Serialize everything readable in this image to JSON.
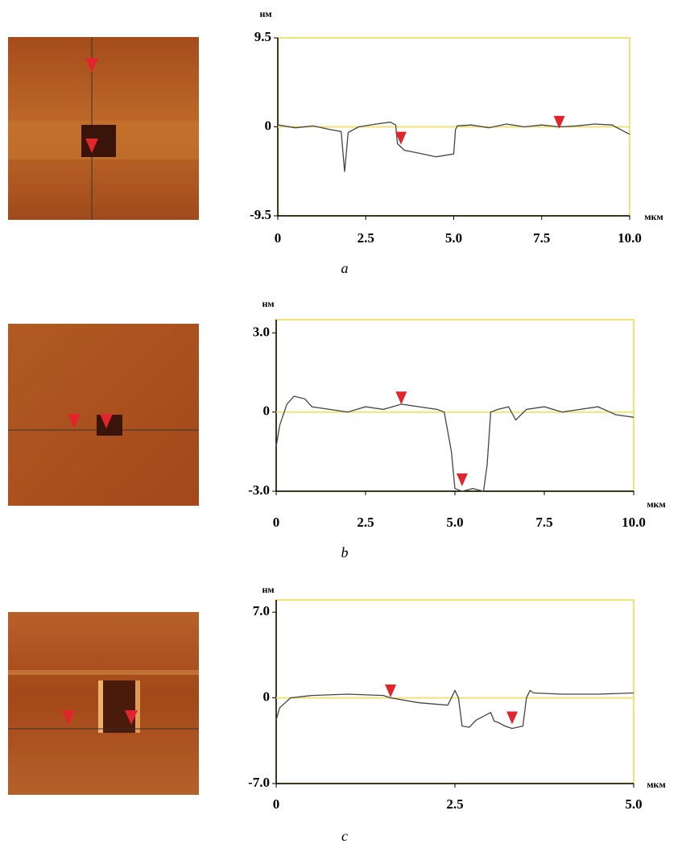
{
  "chart_data": [
    {
      "type": "line",
      "ylabel": "нм",
      "xlabel": "мкм",
      "caption": "a",
      "x": [
        0,
        0.5,
        1,
        1.5,
        1.8,
        1.9,
        2.0,
        2.3,
        2.8,
        3.2,
        3.35,
        3.4,
        3.6,
        4.0,
        4.5,
        5.0,
        5.05,
        5.1,
        5.5,
        6,
        6.5,
        7,
        7.5,
        8,
        8.5,
        9,
        9.5,
        10
      ],
      "values": [
        0.2,
        -0.1,
        0.1,
        -0.3,
        -0.5,
        -4.8,
        -0.6,
        0,
        0.3,
        0.5,
        0.2,
        -1.8,
        -2.5,
        -2.8,
        -3.2,
        -2.9,
        -0.3,
        0.1,
        0.2,
        -0.1,
        0.3,
        0,
        0.2,
        0,
        0.1,
        0.3,
        0.2,
        -0.8
      ],
      "color": "#444444",
      "markers": {
        "x": [
          3.5,
          8.0
        ],
        "values": [
          -1.3,
          0.4
        ],
        "color": "#e0262c"
      },
      "xlim": [
        0,
        10
      ],
      "ylim": [
        -9.5,
        9.5
      ],
      "xticks": [
        0,
        2.5,
        {
          "value": 5,
          "label": "5.0"
        },
        7.5,
        {
          "value": 10,
          "label": "10.0"
        }
      ],
      "yticks": [
        -9.5,
        0,
        9.5
      ],
      "grid": false
    },
    {
      "type": "line",
      "ylabel": "нм",
      "xlabel": "мкм",
      "caption": "b",
      "x": [
        0,
        0.1,
        0.3,
        0.5,
        0.8,
        1,
        1.5,
        2,
        2.5,
        3,
        3.5,
        4,
        4.5,
        4.7,
        4.9,
        5.0,
        5.2,
        5.5,
        5.8,
        5.9,
        6.0,
        6.2,
        6.5,
        6.7,
        7,
        7.5,
        8,
        8.5,
        9,
        9.5,
        10
      ],
      "values": [
        -1.3,
        -0.5,
        0.3,
        0.6,
        0.5,
        0.2,
        0.1,
        0,
        0.2,
        0.1,
        0.3,
        0.2,
        0.1,
        0,
        -1.5,
        -2.9,
        -3.0,
        -2.9,
        -3.0,
        -2.0,
        0,
        0.1,
        0.2,
        -0.3,
        0.1,
        0.2,
        0,
        0.1,
        0.2,
        -0.1,
        -0.2
      ],
      "color": "#444444",
      "markers": {
        "x": [
          3.5,
          5.2
        ],
        "values": [
          0.5,
          -2.6
        ],
        "color": "#e0262c"
      },
      "xlim": [
        0,
        10
      ],
      "ylim": [
        -3.0,
        3.5
      ],
      "xticks": [
        0,
        2.5,
        {
          "value": 5,
          "label": "5.0"
        },
        7.5,
        {
          "value": 10,
          "label": "10.0"
        }
      ],
      "yticks": [
        {
          "value": -3,
          "label": "-3.0"
        },
        0,
        {
          "value": 3,
          "label": "3.0"
        }
      ],
      "grid": false
    },
    {
      "type": "line",
      "ylabel": "нм",
      "xlabel": "мкм",
      "caption": "c",
      "x": [
        0,
        0.05,
        0.2,
        0.5,
        1,
        1.5,
        1.6,
        2,
        2.4,
        2.5,
        2.55,
        2.6,
        2.7,
        2.8,
        2.9,
        3.0,
        3.05,
        3.1,
        3.2,
        3.3,
        3.45,
        3.5,
        3.55,
        3.6,
        4,
        4.5,
        5
      ],
      "values": [
        -1.8,
        -0.8,
        0,
        0.2,
        0.3,
        0.2,
        0,
        -0.4,
        -0.6,
        0.6,
        0,
        -2.3,
        -2.4,
        -1.8,
        -1.5,
        -1.2,
        -1.9,
        -2.0,
        -2.3,
        -2.5,
        -2.3,
        0,
        0.6,
        0.4,
        0.3,
        0.3,
        0.4
      ],
      "color": "#444444",
      "markers": {
        "x": [
          1.6,
          3.3
        ],
        "values": [
          0.5,
          -1.7
        ],
        "color": "#e0262c"
      },
      "xlim": [
        0,
        5
      ],
      "ylim": [
        -7.0,
        8.0
      ],
      "xticks": [
        0,
        2.5,
        {
          "value": 5,
          "label": "5.0"
        }
      ],
      "yticks": [
        {
          "value": -7,
          "label": "-7.0"
        },
        0,
        {
          "value": 7,
          "label": "7.0"
        }
      ],
      "grid": false
    }
  ]
}
